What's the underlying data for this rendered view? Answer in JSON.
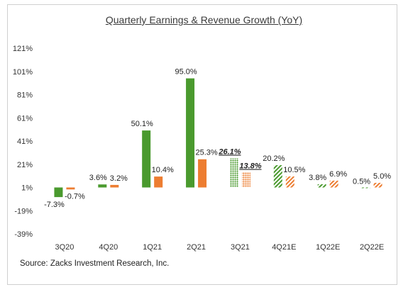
{
  "chart_data": {
    "type": "bar",
    "title": "Quarterly Earnings & Revenue Growth (YoY)",
    "source": "Source: Zacks Investment Research, Inc.",
    "categories": [
      "3Q20",
      "4Q20",
      "1Q21",
      "2Q21",
      "3Q21",
      "4Q21E",
      "1Q22E",
      "2Q22E"
    ],
    "y_ticks": [
      "121%",
      "101%",
      "81%",
      "61%",
      "41%",
      "21%",
      "1%",
      "-19%",
      "-39%"
    ],
    "ylim": [
      -39,
      121
    ],
    "series": [
      {
        "values": [
          -7.3,
          3.6,
          50.1,
          95.0,
          26.1,
          20.2,
          3.8,
          0.5
        ],
        "labels": [
          "-7.3%",
          "3.6%",
          "50.1%",
          "95.0%",
          "26.1%",
          "20.2%",
          "3.8%",
          "0.5%"
        ],
        "color": "#4a9a2e",
        "fill_style": [
          "solid",
          "solid",
          "solid",
          "solid",
          "dotted",
          "hatched",
          "hatched",
          "hatched"
        ]
      },
      {
        "values": [
          -0.7,
          3.2,
          10.4,
          25.3,
          13.8,
          10.5,
          6.9,
          5.0
        ],
        "labels": [
          "-0.7%",
          "3.2%",
          "10.4%",
          "25.3%",
          "13.8%",
          "10.5%",
          "6.9%",
          "5.0%"
        ],
        "color": "#ed7d31",
        "fill_style": [
          "solid",
          "solid",
          "solid",
          "solid",
          "dotted",
          "hatched",
          "hatched",
          "hatched"
        ]
      }
    ],
    "emphasized_labels_category": "3Q21",
    "grid": false,
    "baseline": 1
  }
}
